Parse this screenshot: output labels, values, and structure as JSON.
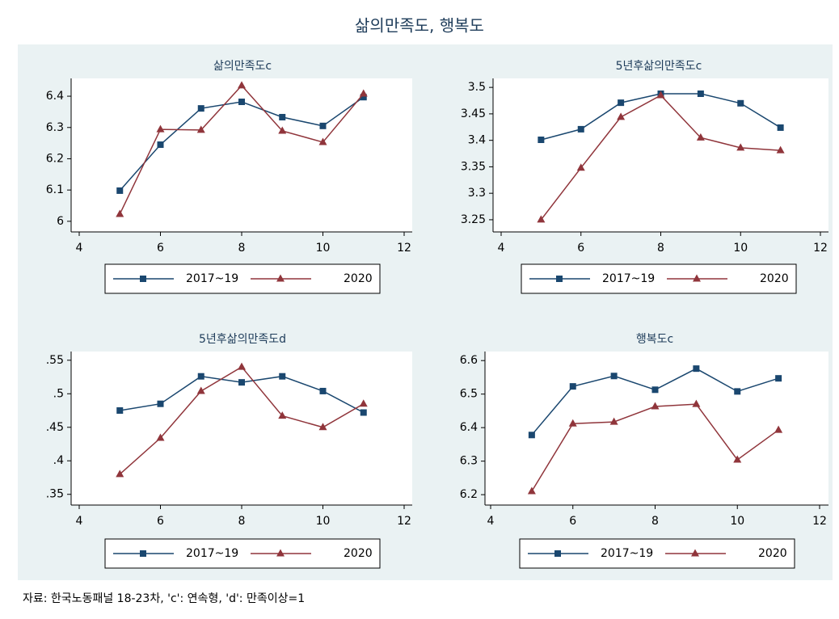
{
  "title": "삶의만족도, 행복도",
  "note": "자료: 한국노동패널 18-23차, 'c': 연속형, 'd': 만족이상=1",
  "chart_data": [
    {
      "type": "line",
      "title": "삶의만족도c",
      "x": [
        5,
        6,
        7,
        8,
        9,
        10,
        11
      ],
      "series": [
        {
          "name": "2017~19",
          "color": "#1a476f",
          "marker": "square",
          "values": [
            6.098,
            6.245,
            6.361,
            6.382,
            6.333,
            6.305,
            6.397
          ]
        },
        {
          "name": "2020",
          "color": "#90353b",
          "marker": "triangle",
          "values": [
            6.023,
            6.294,
            6.292,
            6.434,
            6.289,
            6.253,
            6.408
          ]
        }
      ],
      "xlim": [
        4,
        12
      ],
      "xticks": [
        4,
        6,
        8,
        10,
        12
      ],
      "ylim": [
        5.966,
        6.457
      ],
      "yticks": [
        6,
        6.1,
        6.2,
        6.3,
        6.4
      ],
      "grid": false,
      "legend": "bottom"
    },
    {
      "type": "line",
      "title": "5년후삶의만족도c",
      "x": [
        5,
        6,
        7,
        8,
        9,
        10,
        11
      ],
      "series": [
        {
          "name": "2017~19",
          "color": "#1a476f",
          "marker": "square",
          "values": [
            3.401,
            3.421,
            3.471,
            3.488,
            3.488,
            3.47,
            3.424
          ]
        },
        {
          "name": "2020",
          "color": "#90353b",
          "marker": "triangle",
          "values": [
            3.25,
            3.348,
            3.444,
            3.485,
            3.405,
            3.386,
            3.381
          ]
        }
      ],
      "xlim": [
        4,
        12
      ],
      "xticks": [
        4,
        6,
        8,
        10,
        12
      ],
      "ylim": [
        3.227,
        3.517
      ],
      "yticks": [
        3.25,
        3.3,
        3.35,
        3.4,
        3.45,
        3.5
      ],
      "grid": false,
      "legend": "bottom"
    },
    {
      "type": "line",
      "title": "5년후삶의만족도d",
      "x": [
        5,
        6,
        7,
        8,
        9,
        10,
        11
      ],
      "series": [
        {
          "name": "2017~19",
          "color": "#1a476f",
          "marker": "square",
          "values": [
            0.475,
            0.485,
            0.526,
            0.517,
            0.526,
            0.504,
            0.472
          ]
        },
        {
          "name": "2020",
          "color": "#90353b",
          "marker": "triangle",
          "values": [
            0.38,
            0.434,
            0.504,
            0.54,
            0.467,
            0.45,
            0.485
          ]
        }
      ],
      "xlim": [
        4,
        12
      ],
      "xticks": [
        4,
        6,
        8,
        10,
        12
      ],
      "ylim": [
        0.334,
        0.563
      ],
      "yticks": [
        {
          "value": 0.35,
          "label": ".35"
        },
        {
          "value": 0.4,
          "label": ".4"
        },
        {
          "value": 0.45,
          "label": ".45"
        },
        {
          "value": 0.5,
          "label": ".5"
        },
        {
          "value": 0.55,
          "label": ".55"
        }
      ],
      "grid": false,
      "legend": "bottom"
    },
    {
      "type": "line",
      "title": "행복도c",
      "x": [
        5,
        6,
        7,
        8,
        9,
        10,
        11
      ],
      "series": [
        {
          "name": "2017~19",
          "color": "#1a476f",
          "marker": "square",
          "values": [
            6.378,
            6.523,
            6.554,
            6.513,
            6.576,
            6.508,
            6.547
          ]
        },
        {
          "name": "2020",
          "color": "#90353b",
          "marker": "triangle",
          "values": [
            6.21,
            6.412,
            6.417,
            6.463,
            6.47,
            6.304,
            6.393
          ]
        }
      ],
      "xlim": [
        4,
        12
      ],
      "xticks": [
        4,
        6,
        8,
        10,
        12
      ],
      "ylim": [
        6.169,
        6.627
      ],
      "yticks": [
        6.2,
        6.3,
        6.4,
        6.5,
        6.6
      ],
      "grid": false,
      "legend": "bottom"
    }
  ]
}
